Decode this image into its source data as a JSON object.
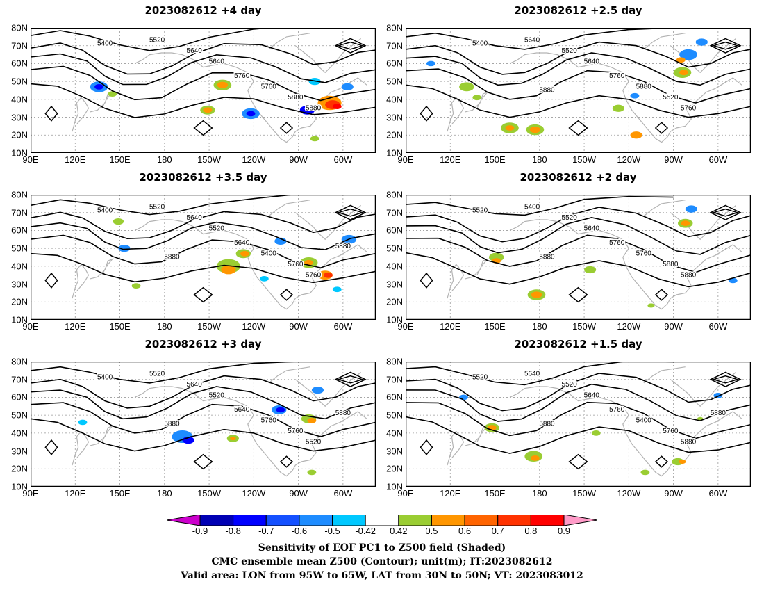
{
  "panels": [
    {
      "title": "2023082612 +4 day",
      "contour_labels": [
        "5400",
        "5520",
        "5640",
        "5640",
        "5760",
        "5760",
        "5880",
        "5880"
      ]
    },
    {
      "title": "2023082612 +2.5 day",
      "contour_labels": [
        "5400",
        "5640",
        "5520",
        "5640",
        "5760",
        "5880",
        "5520",
        "5760",
        "5880"
      ]
    },
    {
      "title": "2023082612 +3.5 day",
      "contour_labels": [
        "5400",
        "5520",
        "5640",
        "5520",
        "5640",
        "5400",
        "5760",
        "5760",
        "5880",
        "5880"
      ]
    },
    {
      "title": "2023082612 +2 day",
      "contour_labels": [
        "5520",
        "5400",
        "5520",
        "5640",
        "5760",
        "5760",
        "5880",
        "5880",
        "5880"
      ]
    },
    {
      "title": "2023082612 +3 day",
      "contour_labels": [
        "5400",
        "5520",
        "5640",
        "5520",
        "5640",
        "5760",
        "5760",
        "5520",
        "5880",
        "5880"
      ]
    },
    {
      "title": "2023082612 +1.5 day",
      "contour_labels": [
        "5520",
        "5640",
        "5520",
        "5640",
        "5760",
        "5400",
        "5760",
        "5880",
        "5880",
        "5880"
      ]
    }
  ],
  "map": {
    "lat_labels": [
      "80N",
      "70N",
      "60N",
      "50N",
      "40N",
      "30N",
      "20N",
      "10N"
    ],
    "lon_labels": [
      "90E",
      "120E",
      "150E",
      "180",
      "150W",
      "120W",
      "90W",
      "60W"
    ],
    "lat_values": [
      80,
      70,
      60,
      50,
      40,
      30,
      20,
      10
    ],
    "lon_values": [
      90,
      120,
      150,
      180,
      210,
      240,
      270,
      300
    ],
    "lon_range": [
      90,
      322
    ],
    "lat_range": [
      10,
      80
    ]
  },
  "colorbar": {
    "labels": [
      "-0.9",
      "-0.8",
      "-0.7",
      "-0.6",
      "-0.5",
      "-0.42",
      "0.42",
      "0.5",
      "0.6",
      "0.7",
      "0.8",
      "0.9"
    ],
    "colors": [
      "#cc00cc",
      "#0000b4",
      "#0000ff",
      "#1450ff",
      "#1e8cff",
      "#00c8ff",
      "#ffffff",
      "#9acd32",
      "#ff9600",
      "#ff6400",
      "#ff3200",
      "#ff0000",
      "#ff9bc8"
    ]
  },
  "footer": [
    "Sensitivity of EOF PC1 to Z500 field (Shaded)",
    "CMC ensemble mean Z500 (Contour); unit(m); IT:2023082612",
    "Valid area: LON from 95W to 65W, LAT from 30N to 50N; VT: 2023083012"
  ],
  "blobs": [
    [
      [
        136,
        47,
        3,
        "#1e8cff"
      ],
      [
        136,
        47,
        1.5,
        "#0000ff"
      ],
      [
        145,
        43,
        1.5,
        "#9acd32"
      ],
      [
        219,
        48,
        3,
        "#9acd32"
      ],
      [
        219,
        48,
        1.8,
        "#ff9600"
      ],
      [
        209,
        34,
        2.5,
        "#9acd32"
      ],
      [
        209,
        34,
        1.5,
        "#ff9600"
      ],
      [
        238,
        32,
        3,
        "#1e8cff"
      ],
      [
        238,
        32,
        1.5,
        "#0000ff"
      ],
      [
        276,
        34,
        2.5,
        "#0000ff"
      ],
      [
        291,
        38,
        4,
        "#ff9600"
      ],
      [
        293,
        37,
        2.5,
        "#ff3200"
      ],
      [
        296,
        36,
        1.5,
        "#ff0000"
      ],
      [
        303,
        47,
        2,
        "#1e8cff"
      ],
      [
        281,
        18,
        1.5,
        "#9acd32"
      ],
      [
        281,
        50,
        2,
        "#00c8ff"
      ]
    ],
    [
      [
        107,
        60,
        1.5,
        "#1e8cff"
      ],
      [
        131,
        47,
        2.5,
        "#9acd32"
      ],
      [
        138,
        41,
        1.5,
        "#9acd32"
      ],
      [
        160,
        24,
        3,
        "#9acd32"
      ],
      [
        160,
        24,
        1.5,
        "#ff9600"
      ],
      [
        177,
        23,
        3,
        "#9acd32"
      ],
      [
        177,
        23,
        1.8,
        "#ff9600"
      ],
      [
        233,
        35,
        2,
        "#9acd32"
      ],
      [
        245,
        20,
        2,
        "#ff9600"
      ],
      [
        276,
        55,
        3,
        "#9acd32"
      ],
      [
        277,
        55,
        1.5,
        "#ff9600"
      ],
      [
        280,
        65,
        3,
        "#1e8cff"
      ],
      [
        289,
        72,
        2,
        "#1e8cff"
      ],
      [
        275,
        62,
        1.5,
        "#ff9600"
      ],
      [
        244,
        42,
        1.5,
        "#1e8cff"
      ]
    ],
    [
      [
        153,
        50,
        2,
        "#1e8cff"
      ],
      [
        161,
        29,
        1.5,
        "#9acd32"
      ],
      [
        149,
        65,
        1.8,
        "#9acd32"
      ],
      [
        223,
        40,
        4,
        "#9acd32"
      ],
      [
        223,
        38,
        2.5,
        "#ff9600"
      ],
      [
        233,
        47,
        2.5,
        "#9acd32"
      ],
      [
        234,
        47,
        1.5,
        "#ff9600"
      ],
      [
        258,
        54,
        2,
        "#1e8cff"
      ],
      [
        277,
        42,
        3,
        "#9acd32"
      ],
      [
        277,
        42,
        1.5,
        "#ff9600"
      ],
      [
        288,
        35,
        2.5,
        "#ff9600"
      ],
      [
        290,
        35,
        1.5,
        "#ff3200"
      ],
      [
        304,
        55,
        2.5,
        "#1e8cff"
      ],
      [
        247,
        33,
        1.5,
        "#00c8ff"
      ],
      [
        296,
        27,
        1.5,
        "#00c8ff"
      ]
    ],
    [
      [
        151,
        45,
        2.5,
        "#9acd32"
      ],
      [
        151,
        43,
        1.5,
        "#ff9600"
      ],
      [
        178,
        24,
        3,
        "#9acd32"
      ],
      [
        178,
        24,
        1.8,
        "#ff9600"
      ],
      [
        214,
        38,
        2,
        "#9acd32"
      ],
      [
        255,
        18,
        1.2,
        "#9acd32"
      ],
      [
        278,
        64,
        2.5,
        "#9acd32"
      ],
      [
        278,
        64,
        1.5,
        "#ff9600"
      ],
      [
        282,
        72,
        2,
        "#1e8cff"
      ],
      [
        310,
        32,
        1.5,
        "#1e8cff"
      ]
    ],
    [
      [
        125,
        46,
        1.5,
        "#00c8ff"
      ],
      [
        192,
        38,
        3.5,
        "#1e8cff"
      ],
      [
        196,
        36,
        2,
        "#0000ff"
      ],
      [
        226,
        37,
        2,
        "#9acd32"
      ],
      [
        226,
        37,
        1,
        "#ff9600"
      ],
      [
        257,
        53,
        2.5,
        "#1e8cff"
      ],
      [
        258,
        53,
        1.5,
        "#0000ff"
      ],
      [
        277,
        48,
        2.5,
        "#9acd32"
      ],
      [
        279,
        47,
        1.5,
        "#ff9600"
      ],
      [
        283,
        64,
        2,
        "#1e8cff"
      ],
      [
        279,
        18,
        1.5,
        "#9acd32"
      ]
    ],
    [
      [
        148,
        43,
        2.5,
        "#9acd32"
      ],
      [
        148,
        43,
        1.5,
        "#ff9600"
      ],
      [
        176,
        27,
        3,
        "#9acd32"
      ],
      [
        177,
        26,
        1.5,
        "#ff9600"
      ],
      [
        218,
        40,
        1.5,
        "#9acd32"
      ],
      [
        251,
        18,
        1.5,
        "#9acd32"
      ],
      [
        273,
        24,
        2,
        "#9acd32"
      ],
      [
        276,
        24,
        1.2,
        "#ff9600"
      ],
      [
        300,
        61,
        1.5,
        "#1e8cff"
      ],
      [
        129,
        60,
        1.5,
        "#1e8cff"
      ],
      [
        288,
        48,
        1,
        "#9acd32"
      ]
    ]
  ]
}
